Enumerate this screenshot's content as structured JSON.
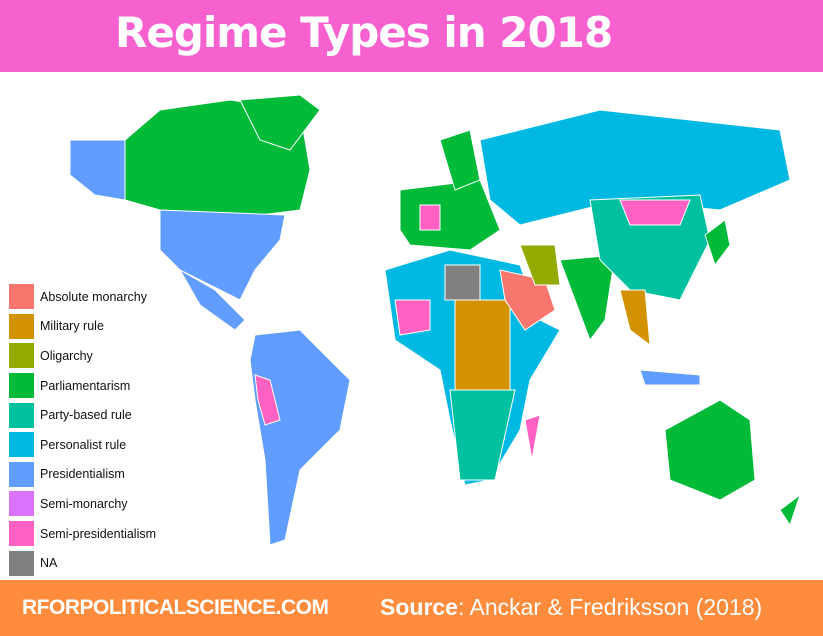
{
  "header": {
    "title": "Regime Types in 2018"
  },
  "legend": [
    {
      "label": "Absolute monarchy",
      "color": "#f8766d"
    },
    {
      "label": "Military rule",
      "color": "#d39200"
    },
    {
      "label": "Oligarchy",
      "color": "#93aa00"
    },
    {
      "label": "Parliamentarism",
      "color": "#00ba38"
    },
    {
      "label": "Party-based rule",
      "color": "#00c19f"
    },
    {
      "label": "Personalist rule",
      "color": "#00b9e3"
    },
    {
      "label": "Presidentialism",
      "color": "#619cff"
    },
    {
      "label": "Semi-monarchy",
      "color": "#db72fb"
    },
    {
      "label": "Semi-presidentialism",
      "color": "#ff61c3"
    },
    {
      "label": "NA",
      "color": "#808080"
    }
  ],
  "footer": {
    "site": "RFORPOLITICALSCIENCE.COM",
    "source": {
      "label": "Source",
      "text": ": Anckar & Fredriksson (2018)"
    }
  }
}
